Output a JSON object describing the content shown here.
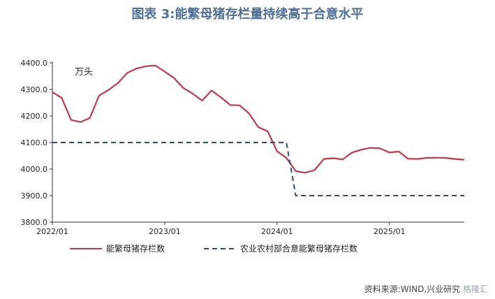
{
  "chart_data": {
    "type": "line",
    "title": "图表 3:能繁母猪存栏量持续高于合意水平",
    "unit_label": "万头",
    "ylim": [
      3800,
      4400
    ],
    "yticks": [
      "3800.0",
      "3900.0",
      "4000.0",
      "4100.0",
      "4200.0",
      "4300.0",
      "4400.0"
    ],
    "xlim": [
      "2022-01",
      "2025-09"
    ],
    "xticks": [
      {
        "label": "2022/01",
        "date": "2022-01"
      },
      {
        "label": "2023/01",
        "date": "2023-01"
      },
      {
        "label": "2024/01",
        "date": "2024-01"
      },
      {
        "label": "2025/01",
        "date": "2025-01"
      }
    ],
    "grid": false,
    "legend": "bottom",
    "series": [
      {
        "name": "能繁母猪存栏数",
        "color": "#c0394b",
        "style": "solid",
        "points": [
          [
            "2022-01",
            4290
          ],
          [
            "2022-02",
            4268
          ],
          [
            "2022-03",
            4185
          ],
          [
            "2022-04",
            4177
          ],
          [
            "2022-05",
            4192
          ],
          [
            "2022-06",
            4277
          ],
          [
            "2022-07",
            4298
          ],
          [
            "2022-08",
            4324
          ],
          [
            "2022-09",
            4362
          ],
          [
            "2022-10",
            4379
          ],
          [
            "2022-11",
            4387
          ],
          [
            "2022-12",
            4390
          ],
          [
            "2023-01",
            4367
          ],
          [
            "2023-02",
            4343
          ],
          [
            "2023-03",
            4305
          ],
          [
            "2023-04",
            4284
          ],
          [
            "2023-05",
            4258
          ],
          [
            "2023-06",
            4296
          ],
          [
            "2023-07",
            4270
          ],
          [
            "2023-08",
            4241
          ],
          [
            "2023-09",
            4240
          ],
          [
            "2023-10",
            4210
          ],
          [
            "2023-11",
            4158
          ],
          [
            "2023-12",
            4142
          ],
          [
            "2024-01",
            4067
          ],
          [
            "2024-02",
            4042
          ],
          [
            "2024-03",
            3992
          ],
          [
            "2024-04",
            3986
          ],
          [
            "2024-05",
            3996
          ],
          [
            "2024-06",
            4038
          ],
          [
            "2024-07",
            4041
          ],
          [
            "2024-08",
            4036
          ],
          [
            "2024-09",
            4062
          ],
          [
            "2024-10",
            4073
          ],
          [
            "2024-11",
            4080
          ],
          [
            "2024-12",
            4078
          ],
          [
            "2025-01",
            4062
          ],
          [
            "2025-02",
            4066
          ],
          [
            "2025-03",
            4039
          ],
          [
            "2025-04",
            4038
          ],
          [
            "2025-05",
            4042
          ],
          [
            "2025-06",
            4043
          ],
          [
            "2025-07",
            4042
          ],
          [
            "2025-08",
            4038
          ],
          [
            "2025-09",
            4035
          ]
        ]
      },
      {
        "name": "农业农村部合意能繁母猪存栏数",
        "color": "#2f4a6b",
        "style": "dashed",
        "points": [
          [
            "2022-01",
            4100
          ],
          [
            "2024-02",
            4100
          ],
          [
            "2024-03",
            3900
          ],
          [
            "2025-09",
            3900
          ]
        ]
      }
    ]
  },
  "source": "资料来源:WIND,兴业研究",
  "watermark": "格隆汇"
}
